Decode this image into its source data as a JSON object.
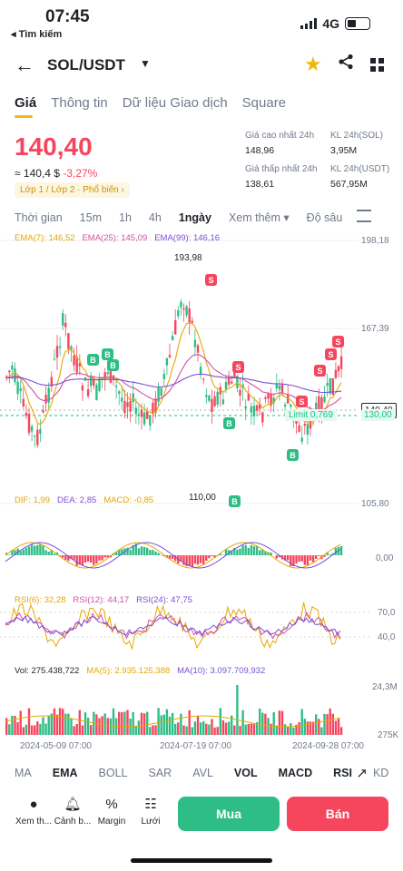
{
  "status_bar": {
    "time": "07:45",
    "back_label": "◂ Tìm kiếm",
    "network": "4G"
  },
  "header": {
    "pair": "SOL/USDT"
  },
  "tabs": [
    "Giá",
    "Thông tin",
    "Dữ liệu Giao dịch",
    "Square"
  ],
  "price": {
    "last": "140,40",
    "approx": "≈ 140,4 $",
    "change": "-3,27%",
    "tags": "Lớp 1 / Lớp 2  ·  Phổ biến ›"
  },
  "stats": {
    "high_label": "Giá cao nhất 24h",
    "high": "148,96",
    "vol_sol_label": "KL 24h(SOL)",
    "vol_sol": "3,95M",
    "low_label": "Giá thấp nhất 24h",
    "low": "138,61",
    "vol_usdt_label": "KL 24h(USDT)",
    "vol_usdt": "567,95M"
  },
  "intervals": [
    "Thời gian",
    "15m",
    "1h",
    "4h",
    "1ngày",
    "Xem thêm ▾",
    "Độ sâu"
  ],
  "ema": {
    "ema7": "EMA(7): 146,52",
    "ema25": "EMA(25): 145,09",
    "ema99": "EMA(99): 146,16"
  },
  "price_axis": [
    "198,18",
    "167,39",
    "105,80"
  ],
  "current_price_tag": "140,40",
  "limit_tag": "Limit  0,769",
  "limit_price": "130,00",
  "high_marker": "193,98",
  "low_marker": "110,00",
  "macd": {
    "dif": "DIF: 1,99",
    "dea": "DEA: 2,85",
    "macd": "MACD: -0,85",
    "axis": "0,00"
  },
  "rsi": {
    "rsi6": "RSI(6): 32,28",
    "rsi12": "RSI(12): 44,17",
    "rsi24": "RSI(24): 47,75",
    "axis_top": "70,0",
    "axis_mid": "40,0"
  },
  "vol": {
    "vol": "Vol: 275.438,722",
    "ma5": "MA(5): 2.935.125,388",
    "ma10": "MA(10): 3.097.709,932",
    "axis_top": "24,3M",
    "axis_bot": "275K"
  },
  "dates": [
    "2024-05-09 07:00",
    "2024-07-19 07:00",
    "2024-09-28 07:00"
  ],
  "indicator_tabs": [
    "MA",
    "EMA",
    "BOLL",
    "SAR",
    "AVL",
    "VOL",
    "MACD",
    "RSI",
    "KD"
  ],
  "bottom": {
    "items": [
      "Xem th...",
      "Cảnh b...",
      "Margin",
      "Lưới"
    ],
    "buy": "Mua",
    "sell": "Bán"
  },
  "colors": {
    "up": "#2ebd85",
    "down": "#f6465d",
    "accent": "#f0b90b"
  },
  "chart_data": {
    "type": "candlestick",
    "interval": "1ngày",
    "title": "SOL/USDT",
    "ylim": [
      105.8,
      198.18
    ],
    "high_marker": 193.98,
    "low_marker": 110.0,
    "last": 140.4,
    "limit_price": 130.0
  }
}
